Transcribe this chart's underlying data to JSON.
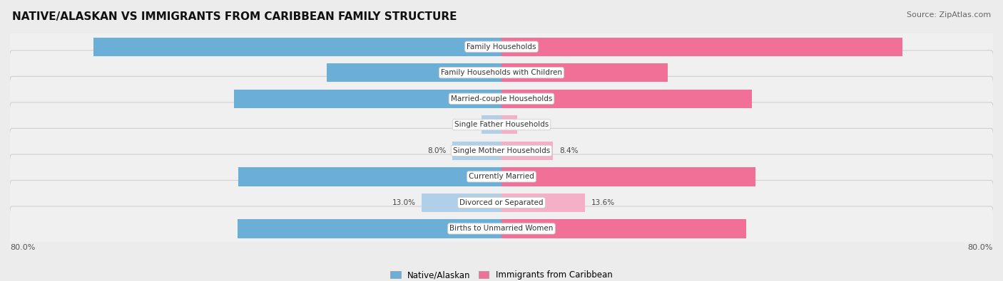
{
  "title": "NATIVE/ALASKAN VS IMMIGRANTS FROM CARIBBEAN FAMILY STRUCTURE",
  "source": "Source: ZipAtlas.com",
  "categories": [
    "Family Households",
    "Family Households with Children",
    "Married-couple Households",
    "Single Father Households",
    "Single Mother Households",
    "Currently Married",
    "Divorced or Separated",
    "Births to Unmarried Women"
  ],
  "native_values": [
    66.4,
    28.4,
    43.5,
    3.2,
    8.0,
    42.8,
    13.0,
    43.0
  ],
  "immigrant_values": [
    65.3,
    27.0,
    40.8,
    2.5,
    8.4,
    41.3,
    13.6,
    39.8
  ],
  "native_color_dark": "#6baed6",
  "native_color_light": "#b0cfe8",
  "immigrant_color_dark": "#f07098",
  "immigrant_color_light": "#f5b0c8",
  "color_threshold": 20.0,
  "axis_max": 80.0,
  "background_color": "#ececec",
  "row_bg_even": "#f5f5f5",
  "row_bg_odd": "#e8e8e8",
  "row_border_color": "#d0d0d0",
  "legend_native": "Native/Alaskan",
  "legend_immigrant": "Immigrants from Caribbean",
  "title_fontsize": 11,
  "label_fontsize": 7.5,
  "value_fontsize": 7.5
}
